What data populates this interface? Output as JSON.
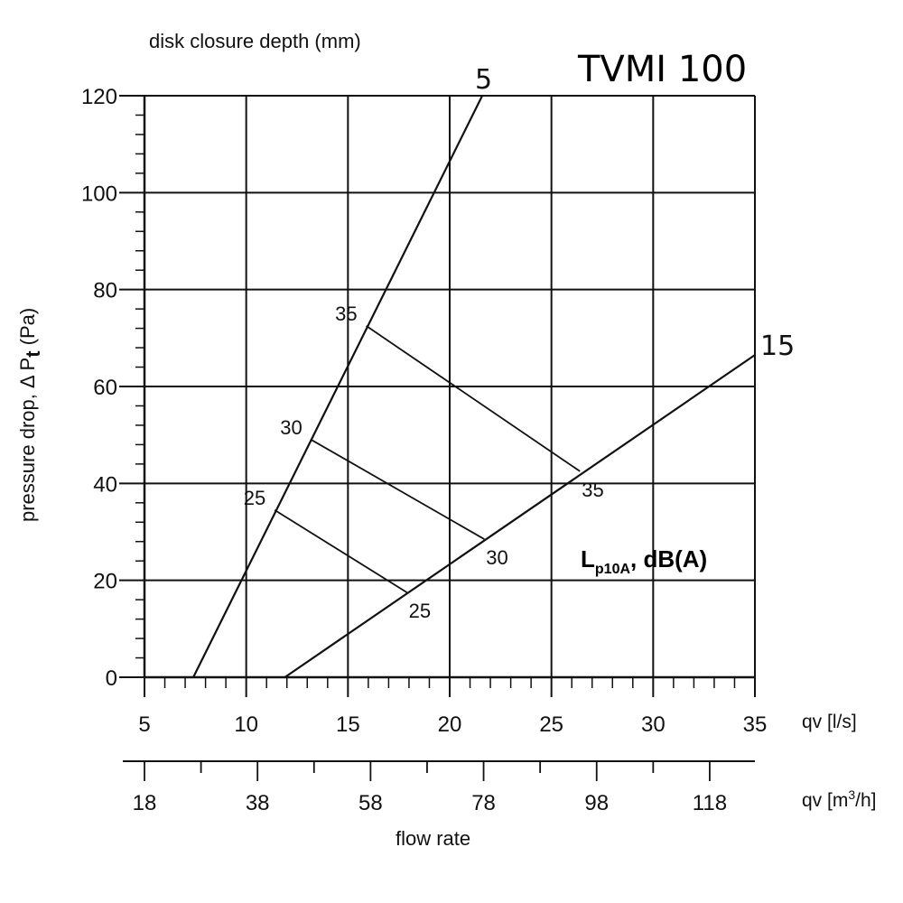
{
  "chart_data": {
    "type": "line",
    "title": "TVMI 100",
    "top_label": "disk closure depth (mm)",
    "ylabel": "pressure drop,  Δ P",
    "ylabel_sub": "t",
    "ylabel_unit": " (Pa)",
    "xlabel": "flow rate",
    "x_unit_ls": "qv [l/s]",
    "x_unit_m3h_main": "qv [m",
    "x_unit_m3h_sup": "3",
    "x_unit_m3h_end": "/h]",
    "xlim": [
      5,
      35
    ],
    "ylim": [
      0,
      120
    ],
    "grid": true,
    "x_ticks": [
      5,
      10,
      15,
      20,
      25,
      30,
      35
    ],
    "y_ticks": [
      0,
      20,
      40,
      60,
      80,
      100,
      120
    ],
    "x2_ticks": [
      18,
      38,
      58,
      78,
      98,
      118
    ],
    "series": [
      {
        "name": "5",
        "x": [
          7.4,
          21.6
        ],
        "y": [
          0,
          120
        ]
      },
      {
        "name": "15",
        "x": [
          11.9,
          35
        ],
        "y": [
          0,
          66.5
        ]
      }
    ],
    "noise_lines": [
      {
        "level": "35",
        "x": [
          15.9,
          26.4
        ],
        "y": [
          72.5,
          42.5
        ]
      },
      {
        "level": "30",
        "x": [
          13.2,
          21.7
        ],
        "y": [
          49,
          28.5
        ]
      },
      {
        "level": "25",
        "x": [
          11.4,
          17.9
        ],
        "y": [
          34.5,
          17.5
        ]
      }
    ],
    "noise_label_main": "L",
    "noise_label_sub": "p10A",
    "noise_label_end": ", dB(A)"
  }
}
